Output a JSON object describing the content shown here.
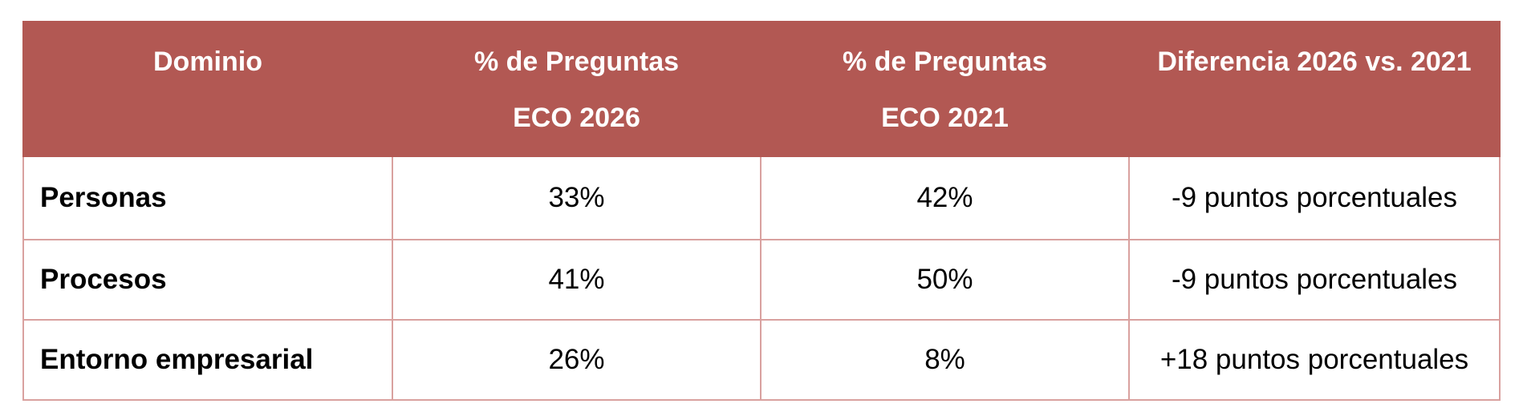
{
  "table": {
    "headers": {
      "domain": "Dominio",
      "eco2026_line1": "% de Preguntas",
      "eco2026_line2": "ECO 2026",
      "eco2021_line1": "% de Preguntas",
      "eco2021_line2": "ECO 2021",
      "difference": "Diferencia 2026 vs. 2021"
    },
    "rows": [
      {
        "domain": "Personas",
        "eco2026": "33%",
        "eco2021": "42%",
        "difference": "-9 puntos porcentuales"
      },
      {
        "domain": "Procesos",
        "eco2026": "41%",
        "eco2021": "50%",
        "difference": "-9 puntos porcentuales"
      },
      {
        "domain": "Entorno empresarial",
        "eco2026": "26%",
        "eco2021": "8%",
        "difference": "+18 puntos porcentuales"
      }
    ]
  },
  "colors": {
    "header_background": "#b25853",
    "header_text": "#ffffff",
    "cell_border": "#d9a19f"
  }
}
